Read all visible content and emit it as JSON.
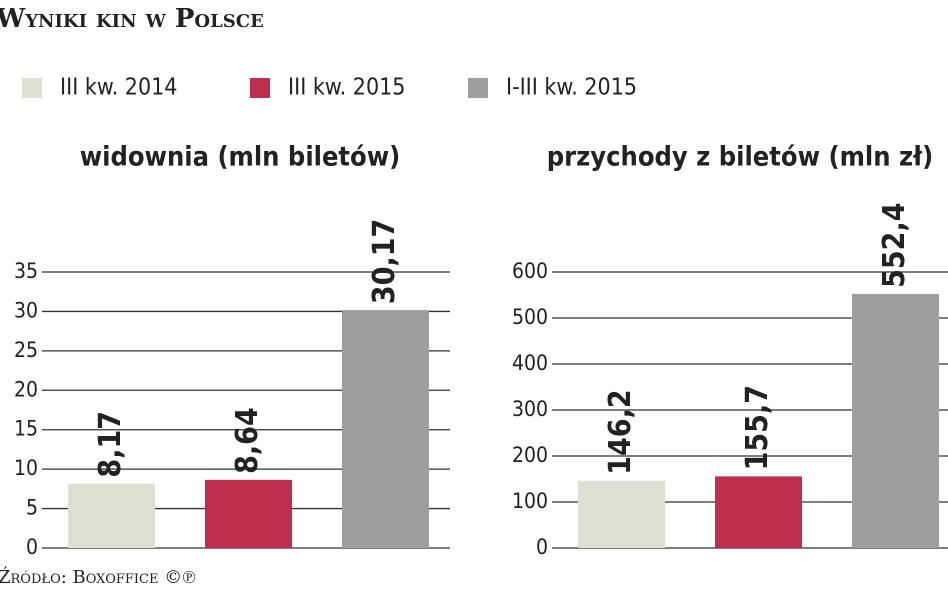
{
  "title": "Wyniki kin w Polsce",
  "legend": [
    {
      "name": "III kw. 2014",
      "color": "#deded3"
    },
    {
      "name": "III kw. 2015",
      "color": "#bf2d4f"
    },
    {
      "name": "I-III kw. 2015",
      "color": "#9e9e9e"
    }
  ],
  "source": "Źródło: Boxoffice ©℗",
  "chart_data": [
    {
      "type": "bar",
      "title": "widownia (mln biletów)",
      "values": [
        8.17,
        8.64,
        30.17
      ],
      "value_labels": [
        "8,17",
        "8,64",
        "30,17"
      ],
      "ylim": [
        0,
        35
      ],
      "yticks": [
        0,
        5,
        10,
        15,
        20,
        25,
        30,
        35
      ],
      "grid": true
    },
    {
      "type": "bar",
      "title": "przychody z biletów (mln zł)",
      "values": [
        146.2,
        155.7,
        552.4
      ],
      "value_labels": [
        "146,2",
        "155,7",
        "552,4"
      ],
      "ylim": [
        0,
        600
      ],
      "yticks": [
        0,
        100,
        200,
        300,
        400,
        500,
        600
      ],
      "grid": true
    }
  ]
}
